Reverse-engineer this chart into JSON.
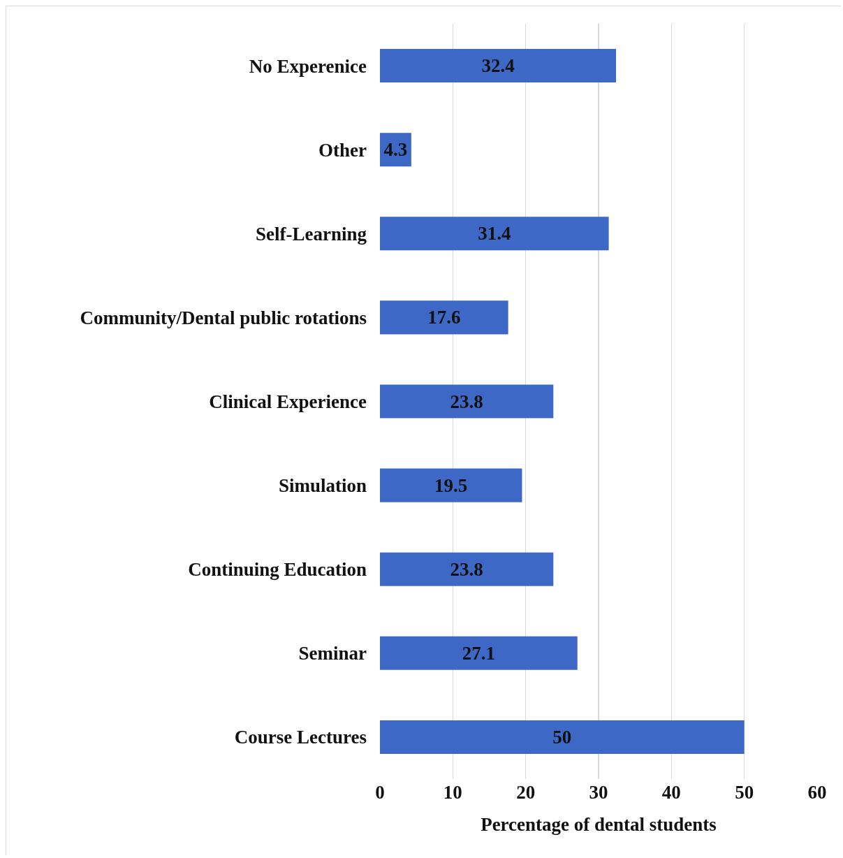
{
  "chart_data": {
    "type": "bar",
    "orientation": "horizontal",
    "xlabel": "Percentage of dental students",
    "categories": [
      "No Experenice",
      "Other",
      "Self-Learning",
      "Community/Dental public rotations",
      "Clinical Experience",
      "Simulation",
      "Continuing Education",
      "Seminar",
      "Course Lectures"
    ],
    "values": [
      32.4,
      4.3,
      31.4,
      17.6,
      23.8,
      19.5,
      23.8,
      27.1,
      50
    ],
    "color": "#3d68c6",
    "xlim": [
      0,
      60
    ],
    "xticks": [
      0,
      10,
      20,
      30,
      40,
      50,
      60
    ],
    "grid": "x",
    "data_labels": true
  }
}
